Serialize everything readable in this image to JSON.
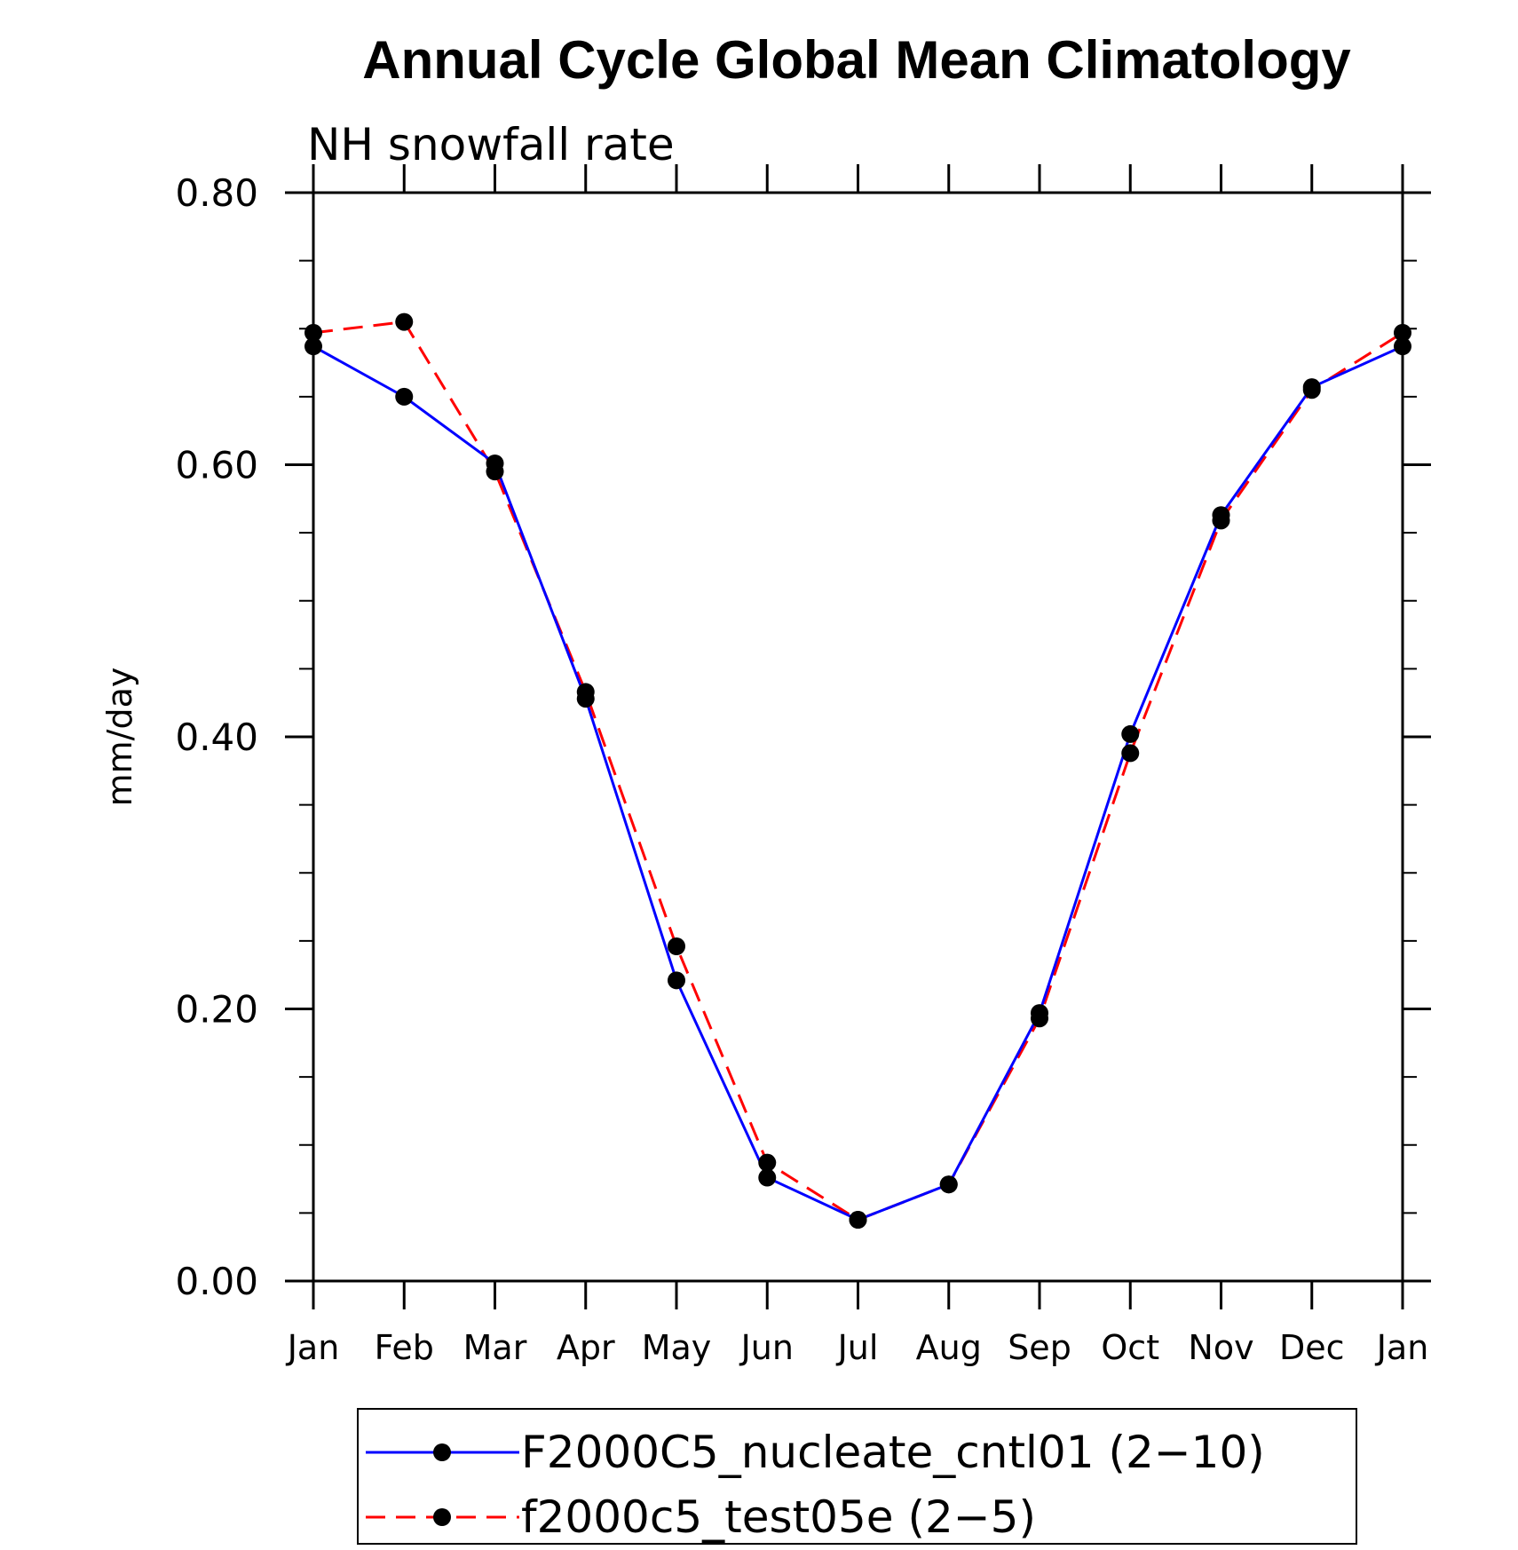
{
  "chart_data": {
    "type": "line",
    "title": "Annual Cycle Global Mean Climatology",
    "subtitle": "NH snowfall rate",
    "xlabel": "",
    "ylabel": "mm/day",
    "ylim": [
      0,
      0.8
    ],
    "y_major_ticks": [
      0,
      0.2,
      0.4,
      0.6,
      0.8
    ],
    "y_tick_labels": [
      "0.00",
      "0.20",
      "0.40",
      "0.60",
      "0.80"
    ],
    "y_minor_step": 0.05,
    "categories": [
      "Jan",
      "Feb",
      "Mar",
      "Apr",
      "May",
      "Jun",
      "Jul",
      "Aug",
      "Sep",
      "Oct",
      "Nov",
      "Dec",
      "Jan"
    ],
    "grid": false,
    "legend_position": "bottom",
    "series": [
      {
        "name": "F2000C5_nucleate_cntl01 (2−10)",
        "color": "#0000ff",
        "dash": "solid",
        "marker": "filled-circle",
        "values": [
          0.687,
          0.65,
          0.601,
          0.428,
          0.221,
          0.076,
          0.045,
          0.071,
          0.197,
          0.402,
          0.563,
          0.657,
          0.687
        ]
      },
      {
        "name": "f2000c5_test05e (2−5)",
        "color": "#ff0000",
        "dash": "dashed",
        "marker": "filled-circle",
        "values": [
          0.697,
          0.705,
          0.595,
          0.433,
          0.246,
          0.087,
          0.045,
          0.071,
          0.193,
          0.388,
          0.559,
          0.655,
          0.697
        ]
      }
    ]
  }
}
